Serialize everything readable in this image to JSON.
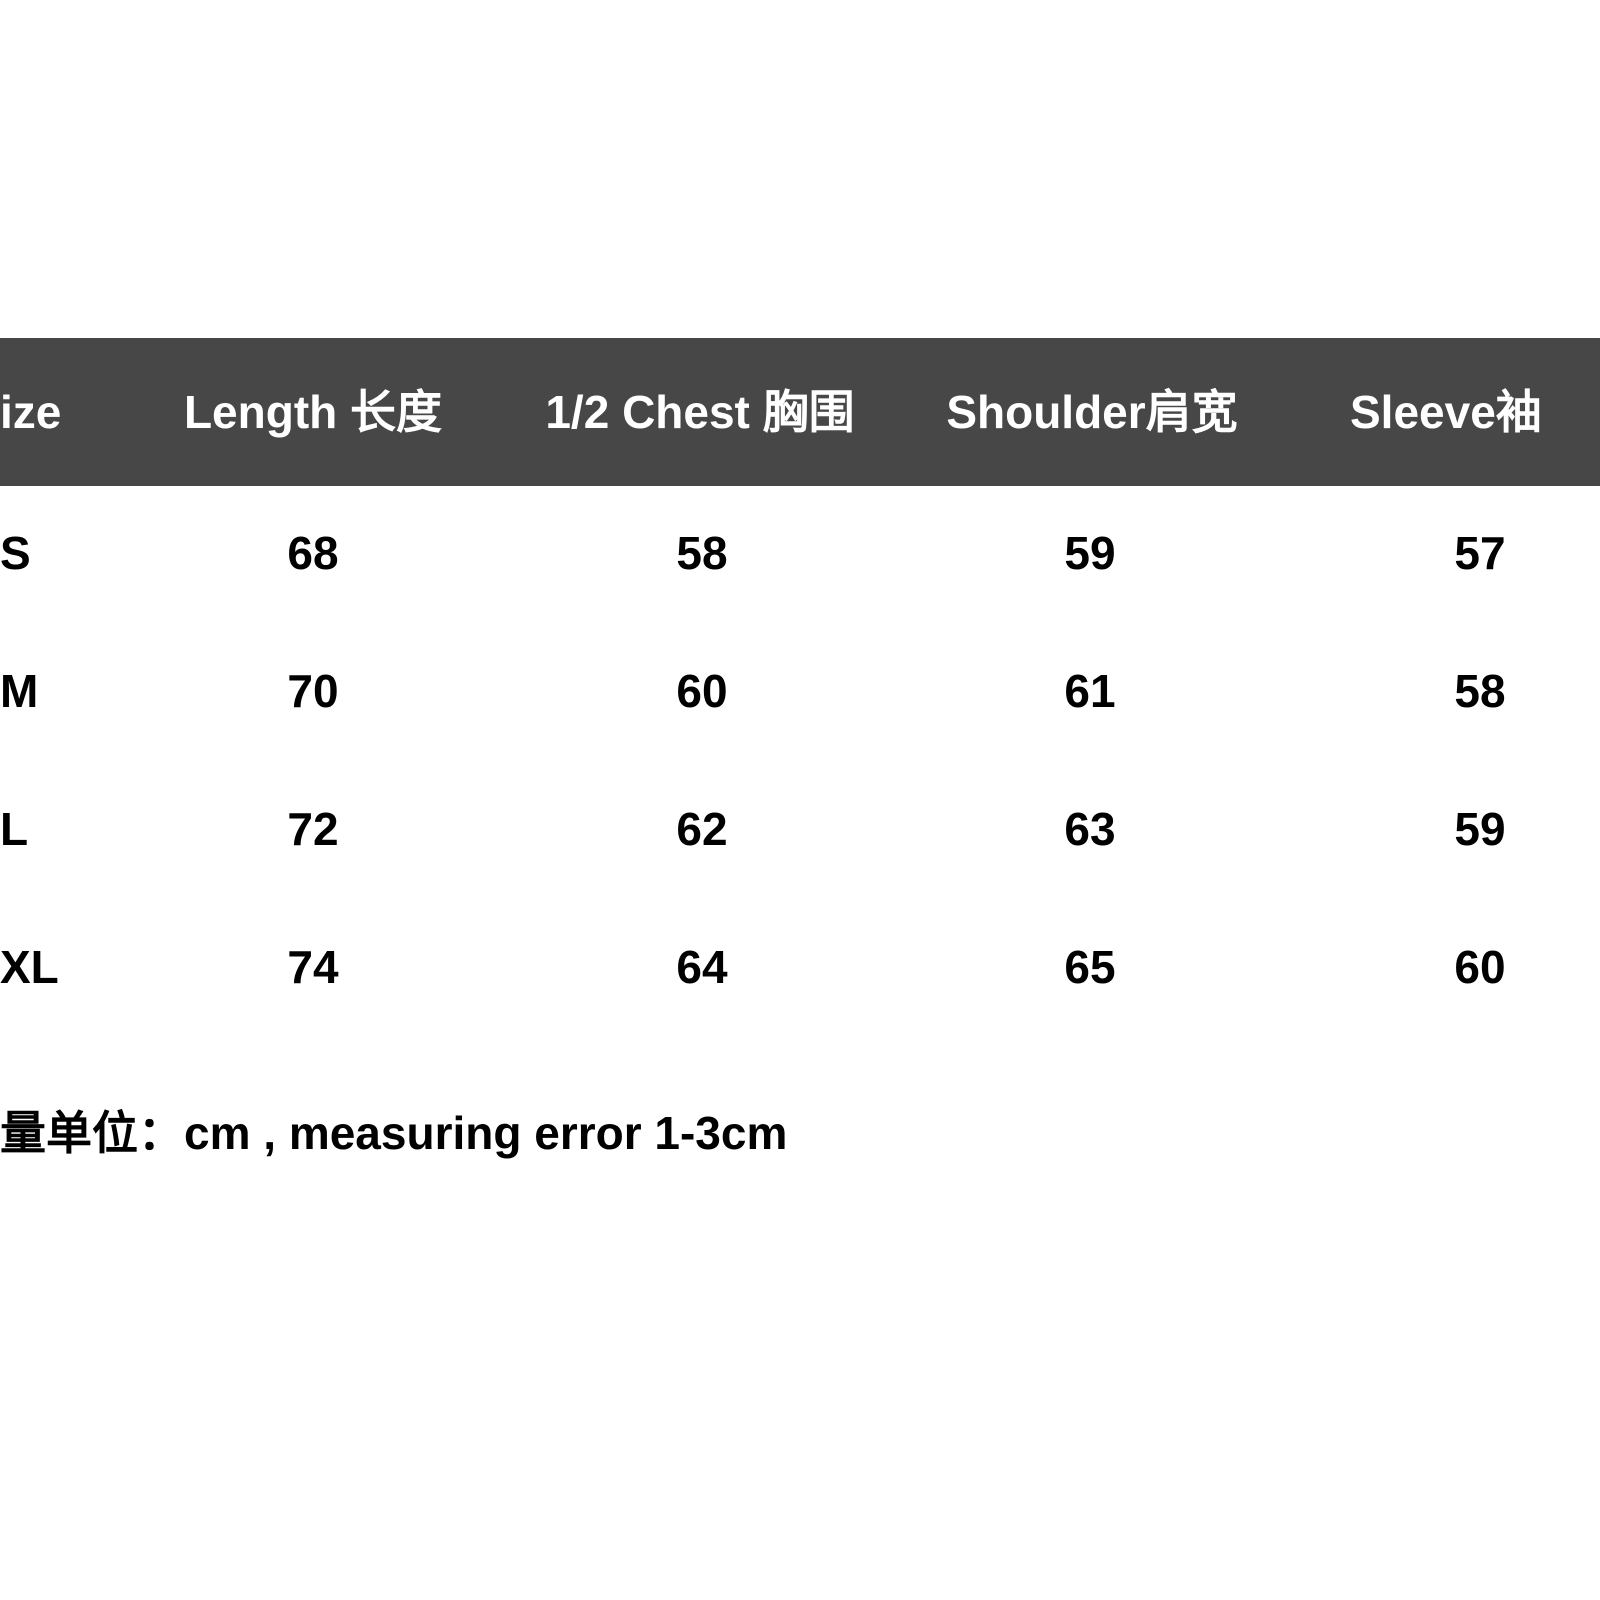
{
  "table": {
    "header": [
      "ize",
      "Length 长度",
      "1/2 Chest 胸围",
      "Shoulder肩宽",
      "Sleeve袖"
    ],
    "rows": [
      [
        "S",
        68,
        58,
        59,
        57
      ],
      [
        "M",
        70,
        60,
        61,
        58
      ],
      [
        "L",
        72,
        62,
        63,
        59
      ],
      [
        "XL",
        74,
        64,
        65,
        60
      ]
    ]
  },
  "note": "量单位：cm , measuring error 1-3cm"
}
